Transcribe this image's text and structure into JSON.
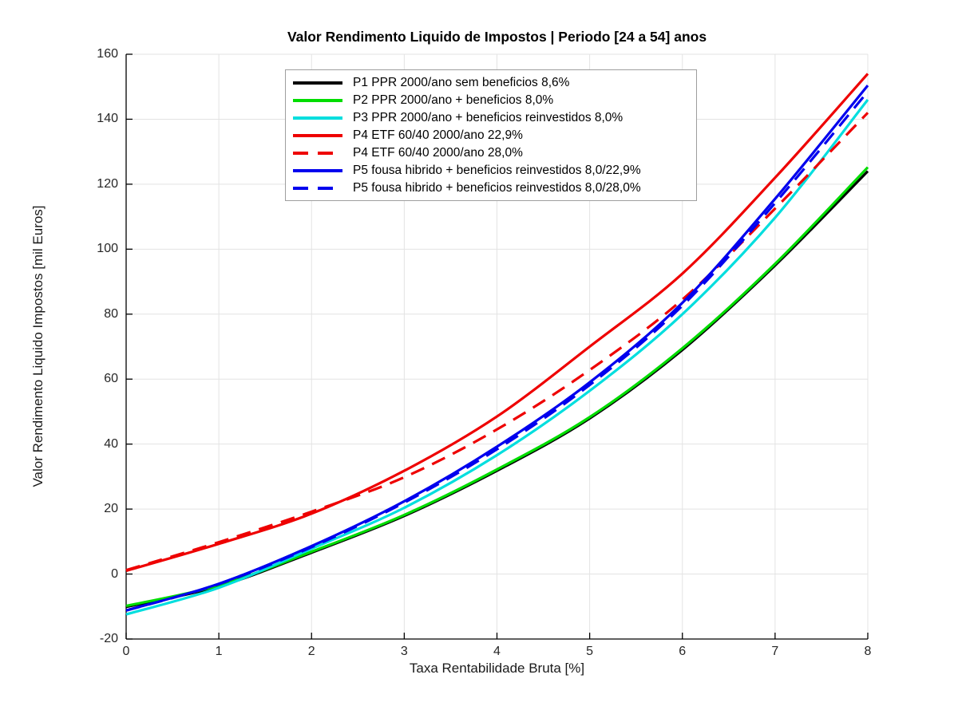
{
  "figure": {
    "title": "Valor Rendimento Liquido de Impostos | Periodo [24 a 54] anos",
    "xlabel": "Taxa Rentabilidade Bruta [%]",
    "ylabel": "Valor Rendimento Liquido Impostos [mil Euros]"
  },
  "chart_data": {
    "type": "line",
    "title": "Valor Rendimento Liquido de Impostos | Periodo [24 a 54] anos",
    "xlabel": "Taxa Rentabilidade Bruta [%]",
    "ylabel": "Valor Rendimento Liquido Impostos [mil Euros]",
    "xlim": [
      0,
      8
    ],
    "ylim": [
      -20,
      160
    ],
    "xticks": [
      0,
      1,
      2,
      3,
      4,
      5,
      6,
      7,
      8
    ],
    "yticks": [
      -20,
      0,
      20,
      40,
      60,
      80,
      100,
      120,
      140,
      160
    ],
    "grid": true,
    "legend_position": "upper center-left, inside plot",
    "x": [
      0,
      1,
      2,
      3,
      4,
      5,
      6,
      7,
      8
    ],
    "series": [
      {
        "name": "P1 PPR 2000/ano sem beneficios 8,6%",
        "color": "#000000",
        "style": "solid",
        "values": [
          -10.1,
          -3.8,
          6.6,
          17.9,
          31.8,
          47.9,
          69.0,
          95.0,
          124.0
        ]
      },
      {
        "name": "P2 PPR 2000/ano + beneficios 8,0%",
        "color": "#00dd00",
        "style": "solid",
        "values": [
          -9.8,
          -3.5,
          6.9,
          18.2,
          32.2,
          48.3,
          69.5,
          95.5,
          125.2
        ]
      },
      {
        "name": "P3 PPR 2000/ano + beneficios reinvestidos 8,0%",
        "color": "#00dede",
        "style": "solid",
        "values": [
          -12.4,
          -4.2,
          7.8,
          20.4,
          36.6,
          56.4,
          80.0,
          109.7,
          146.0
        ]
      },
      {
        "name": "P4 ETF 60/40 2000/ano 22,9%",
        "color": "#ee0000",
        "style": "solid",
        "values": [
          1.0,
          9.3,
          18.6,
          31.8,
          48.5,
          70.0,
          92.5,
          122.0,
          154.0
        ]
      },
      {
        "name": "P4 ETF 60/40 2000/ano 28,0%",
        "color": "#ee0000",
        "style": "dashed",
        "values": [
          1.2,
          9.8,
          19.2,
          29.8,
          44.5,
          62.8,
          84.5,
          112.5,
          142.0
        ]
      },
      {
        "name": "P5 fousa hibrido + beneficios reinvestidos 8,0/22,9%",
        "color": "#0000ee",
        "style": "solid",
        "values": [
          -11.2,
          -3.0,
          8.6,
          22.4,
          39.2,
          59.0,
          83.5,
          115.5,
          150.4
        ]
      },
      {
        "name": "P5 fousa hibrido + beneficios reinvestidos 8,0/28,0%",
        "color": "#0000ee",
        "style": "dashed",
        "values": [
          -11.2,
          -3.1,
          8.3,
          22.0,
          38.4,
          58.2,
          82.6,
          114.2,
          148.5
        ]
      }
    ],
    "colors": {
      "background": "#ffffff",
      "grid": "#e3e3e3",
      "axis": "#000000",
      "tick_label": "#262626"
    }
  }
}
